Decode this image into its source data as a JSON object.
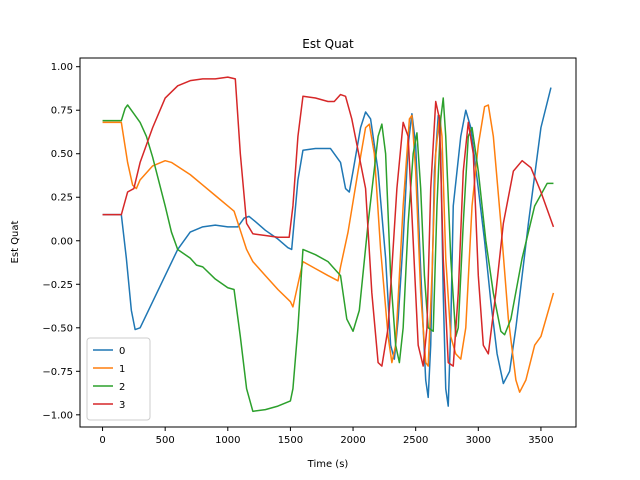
{
  "chart_data": {
    "type": "line",
    "title": "Est Quat",
    "xlabel": "Time (s)",
    "ylabel": "Est Quat",
    "xlim": [
      -180,
      3780
    ],
    "ylim": [
      -1.07,
      1.05
    ],
    "xticks": [
      0,
      500,
      1000,
      1500,
      2000,
      2500,
      3000,
      3500
    ],
    "yticks": [
      -1.0,
      -0.75,
      -0.5,
      -0.25,
      0.0,
      0.25,
      0.5,
      0.75,
      1.0
    ],
    "ytick_labels": [
      "−1.00",
      "−0.75",
      "−0.50",
      "−0.25",
      "0.00",
      "0.25",
      "0.50",
      "0.75",
      "1.00"
    ],
    "grid": false,
    "legend_position": "lower-left",
    "series": [
      {
        "name": "0",
        "color": "#1f77b4",
        "points": [
          [
            0,
            0.15
          ],
          [
            150,
            0.15
          ],
          [
            190,
            -0.1
          ],
          [
            230,
            -0.4
          ],
          [
            260,
            -0.51
          ],
          [
            300,
            -0.5
          ],
          [
            400,
            -0.35
          ],
          [
            500,
            -0.2
          ],
          [
            600,
            -0.05
          ],
          [
            700,
            0.05
          ],
          [
            800,
            0.08
          ],
          [
            900,
            0.09
          ],
          [
            1000,
            0.08
          ],
          [
            1080,
            0.08
          ],
          [
            1130,
            0.13
          ],
          [
            1170,
            0.14
          ],
          [
            1220,
            0.11
          ],
          [
            1300,
            0.06
          ],
          [
            1400,
            0.01
          ],
          [
            1480,
            -0.04
          ],
          [
            1510,
            -0.05
          ],
          [
            1560,
            0.35
          ],
          [
            1600,
            0.52
          ],
          [
            1700,
            0.53
          ],
          [
            1820,
            0.53
          ],
          [
            1900,
            0.45
          ],
          [
            1940,
            0.3
          ],
          [
            1970,
            0.28
          ],
          [
            2000,
            0.4
          ],
          [
            2060,
            0.65
          ],
          [
            2100,
            0.74
          ],
          [
            2140,
            0.7
          ],
          [
            2200,
            0.4
          ],
          [
            2260,
            -0.1
          ],
          [
            2300,
            -0.6
          ],
          [
            2330,
            -0.68
          ],
          [
            2360,
            -0.45
          ],
          [
            2400,
            0.0
          ],
          [
            2440,
            0.55
          ],
          [
            2470,
            0.73
          ],
          [
            2500,
            0.55
          ],
          [
            2530,
            0.0
          ],
          [
            2560,
            -0.5
          ],
          [
            2580,
            -0.8
          ],
          [
            2600,
            -0.9
          ],
          [
            2620,
            -0.6
          ],
          [
            2650,
            0.4
          ],
          [
            2680,
            0.72
          ],
          [
            2700,
            0.5
          ],
          [
            2720,
            -0.3
          ],
          [
            2740,
            -0.85
          ],
          [
            2760,
            -0.95
          ],
          [
            2780,
            -0.5
          ],
          [
            2800,
            0.2
          ],
          [
            2860,
            0.6
          ],
          [
            2900,
            0.75
          ],
          [
            2940,
            0.65
          ],
          [
            3000,
            0.3
          ],
          [
            3050,
            0.0
          ],
          [
            3100,
            -0.35
          ],
          [
            3150,
            -0.65
          ],
          [
            3200,
            -0.82
          ],
          [
            3250,
            -0.75
          ],
          [
            3300,
            -0.5
          ],
          [
            3400,
            0.1
          ],
          [
            3500,
            0.65
          ],
          [
            3580,
            0.88
          ]
        ]
      },
      {
        "name": "1",
        "color": "#ff7f0e",
        "points": [
          [
            0,
            0.68
          ],
          [
            150,
            0.68
          ],
          [
            200,
            0.45
          ],
          [
            240,
            0.32
          ],
          [
            270,
            0.3
          ],
          [
            300,
            0.35
          ],
          [
            400,
            0.43
          ],
          [
            500,
            0.46
          ],
          [
            550,
            0.45
          ],
          [
            700,
            0.38
          ],
          [
            800,
            0.32
          ],
          [
            900,
            0.26
          ],
          [
            1000,
            0.2
          ],
          [
            1050,
            0.17
          ],
          [
            1100,
            0.06
          ],
          [
            1150,
            -0.05
          ],
          [
            1200,
            -0.12
          ],
          [
            1300,
            -0.2
          ],
          [
            1400,
            -0.28
          ],
          [
            1500,
            -0.35
          ],
          [
            1520,
            -0.38
          ],
          [
            1560,
            -0.25
          ],
          [
            1600,
            -0.12
          ],
          [
            1700,
            -0.16
          ],
          [
            1800,
            -0.2
          ],
          [
            1880,
            -0.23
          ],
          [
            1900,
            -0.15
          ],
          [
            1960,
            0.05
          ],
          [
            2040,
            0.4
          ],
          [
            2100,
            0.65
          ],
          [
            2130,
            0.67
          ],
          [
            2170,
            0.5
          ],
          [
            2220,
            -0.05
          ],
          [
            2280,
            -0.55
          ],
          [
            2310,
            -0.7
          ],
          [
            2340,
            -0.6
          ],
          [
            2400,
            0.2
          ],
          [
            2450,
            0.7
          ],
          [
            2470,
            0.72
          ],
          [
            2500,
            0.4
          ],
          [
            2540,
            -0.3
          ],
          [
            2580,
            -0.7
          ],
          [
            2600,
            -0.72
          ],
          [
            2630,
            -0.2
          ],
          [
            2660,
            0.5
          ],
          [
            2690,
            0.72
          ],
          [
            2710,
            0.6
          ],
          [
            2740,
            -0.1
          ],
          [
            2780,
            -0.55
          ],
          [
            2820,
            -0.65
          ],
          [
            2860,
            -0.68
          ],
          [
            2900,
            -0.5
          ],
          [
            2950,
            0.2
          ],
          [
            3000,
            0.55
          ],
          [
            3050,
            0.77
          ],
          [
            3080,
            0.78
          ],
          [
            3120,
            0.6
          ],
          [
            3180,
            0.1
          ],
          [
            3240,
            -0.45
          ],
          [
            3300,
            -0.8
          ],
          [
            3330,
            -0.87
          ],
          [
            3380,
            -0.8
          ],
          [
            3450,
            -0.6
          ],
          [
            3500,
            -0.55
          ],
          [
            3600,
            -0.3
          ]
        ]
      },
      {
        "name": "2",
        "color": "#2ca02c",
        "points": [
          [
            0,
            0.69
          ],
          [
            150,
            0.69
          ],
          [
            180,
            0.76
          ],
          [
            200,
            0.78
          ],
          [
            240,
            0.74
          ],
          [
            300,
            0.68
          ],
          [
            350,
            0.6
          ],
          [
            400,
            0.48
          ],
          [
            500,
            0.2
          ],
          [
            550,
            0.05
          ],
          [
            600,
            -0.05
          ],
          [
            700,
            -0.1
          ],
          [
            750,
            -0.14
          ],
          [
            800,
            -0.15
          ],
          [
            900,
            -0.22
          ],
          [
            1000,
            -0.27
          ],
          [
            1050,
            -0.28
          ],
          [
            1100,
            -0.55
          ],
          [
            1150,
            -0.85
          ],
          [
            1200,
            -0.98
          ],
          [
            1300,
            -0.97
          ],
          [
            1400,
            -0.95
          ],
          [
            1500,
            -0.92
          ],
          [
            1520,
            -0.85
          ],
          [
            1560,
            -0.5
          ],
          [
            1600,
            -0.05
          ],
          [
            1700,
            -0.08
          ],
          [
            1800,
            -0.12
          ],
          [
            1900,
            -0.2
          ],
          [
            1950,
            -0.45
          ],
          [
            2000,
            -0.52
          ],
          [
            2050,
            -0.4
          ],
          [
            2120,
            0.1
          ],
          [
            2200,
            0.6
          ],
          [
            2230,
            0.67
          ],
          [
            2260,
            0.5
          ],
          [
            2300,
            -0.2
          ],
          [
            2340,
            -0.6
          ],
          [
            2370,
            -0.7
          ],
          [
            2400,
            -0.5
          ],
          [
            2440,
            0.1
          ],
          [
            2480,
            0.5
          ],
          [
            2510,
            0.62
          ],
          [
            2540,
            0.3
          ],
          [
            2570,
            -0.2
          ],
          [
            2600,
            -0.5
          ],
          [
            2640,
            -0.52
          ],
          [
            2670,
            0.2
          ],
          [
            2700,
            0.7
          ],
          [
            2720,
            0.82
          ],
          [
            2740,
            0.6
          ],
          [
            2780,
            -0.1
          ],
          [
            2820,
            -0.55
          ],
          [
            2840,
            -0.5
          ],
          [
            2880,
            0.1
          ],
          [
            2920,
            0.6
          ],
          [
            2950,
            0.65
          ],
          [
            3000,
            0.4
          ],
          [
            3060,
            0.0
          ],
          [
            3120,
            -0.3
          ],
          [
            3180,
            -0.52
          ],
          [
            3210,
            -0.54
          ],
          [
            3260,
            -0.45
          ],
          [
            3350,
            -0.1
          ],
          [
            3450,
            0.2
          ],
          [
            3550,
            0.33
          ],
          [
            3600,
            0.33
          ]
        ]
      },
      {
        "name": "3",
        "color": "#d62728",
        "points": [
          [
            0,
            0.15
          ],
          [
            150,
            0.15
          ],
          [
            200,
            0.28
          ],
          [
            250,
            0.3
          ],
          [
            300,
            0.45
          ],
          [
            400,
            0.65
          ],
          [
            500,
            0.82
          ],
          [
            600,
            0.89
          ],
          [
            700,
            0.92
          ],
          [
            800,
            0.93
          ],
          [
            900,
            0.93
          ],
          [
            1000,
            0.94
          ],
          [
            1060,
            0.93
          ],
          [
            1100,
            0.5
          ],
          [
            1150,
            0.1
          ],
          [
            1200,
            0.04
          ],
          [
            1300,
            0.03
          ],
          [
            1400,
            0.02
          ],
          [
            1490,
            0.02
          ],
          [
            1520,
            0.2
          ],
          [
            1560,
            0.6
          ],
          [
            1600,
            0.83
          ],
          [
            1700,
            0.82
          ],
          [
            1800,
            0.8
          ],
          [
            1850,
            0.8
          ],
          [
            1900,
            0.84
          ],
          [
            1940,
            0.83
          ],
          [
            1990,
            0.7
          ],
          [
            2100,
            0.3
          ],
          [
            2150,
            -0.3
          ],
          [
            2200,
            -0.7
          ],
          [
            2230,
            -0.72
          ],
          [
            2280,
            -0.5
          ],
          [
            2350,
            0.3
          ],
          [
            2400,
            0.68
          ],
          [
            2440,
            0.6
          ],
          [
            2480,
            0.0
          ],
          [
            2520,
            -0.6
          ],
          [
            2560,
            -0.72
          ],
          [
            2590,
            -0.5
          ],
          [
            2620,
            0.3
          ],
          [
            2660,
            0.8
          ],
          [
            2690,
            0.7
          ],
          [
            2720,
            -0.1
          ],
          [
            2760,
            -0.7
          ],
          [
            2800,
            -0.72
          ],
          [
            2840,
            -0.3
          ],
          [
            2880,
            0.4
          ],
          [
            2920,
            0.68
          ],
          [
            2960,
            0.5
          ],
          [
            3000,
            -0.2
          ],
          [
            3040,
            -0.6
          ],
          [
            3080,
            -0.65
          ],
          [
            3140,
            -0.3
          ],
          [
            3200,
            0.1
          ],
          [
            3280,
            0.4
          ],
          [
            3350,
            0.46
          ],
          [
            3420,
            0.42
          ],
          [
            3500,
            0.28
          ],
          [
            3600,
            0.08
          ]
        ]
      }
    ]
  }
}
